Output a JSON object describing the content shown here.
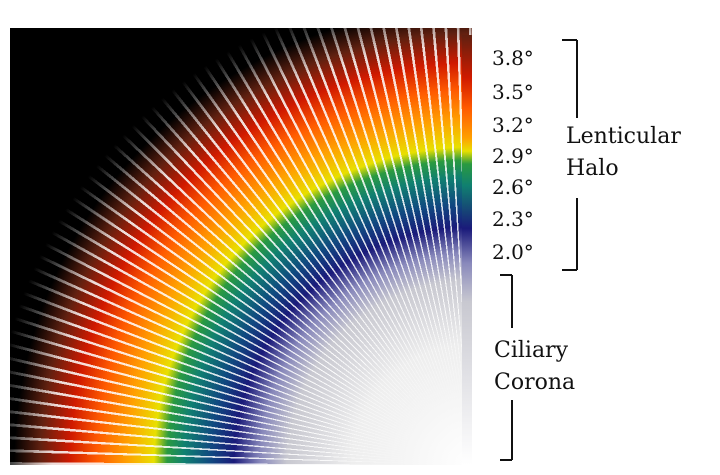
{
  "scale": {
    "ticks": [
      "3.8°",
      "3.5°",
      "3.2°",
      "2.9°",
      "2.6°",
      "2.3°",
      "2.0°"
    ]
  },
  "brackets": [
    {
      "label_lines": [
        "Lenticular",
        "Halo"
      ]
    },
    {
      "label_lines": [
        "Ciliary",
        "Corona"
      ]
    }
  ]
}
